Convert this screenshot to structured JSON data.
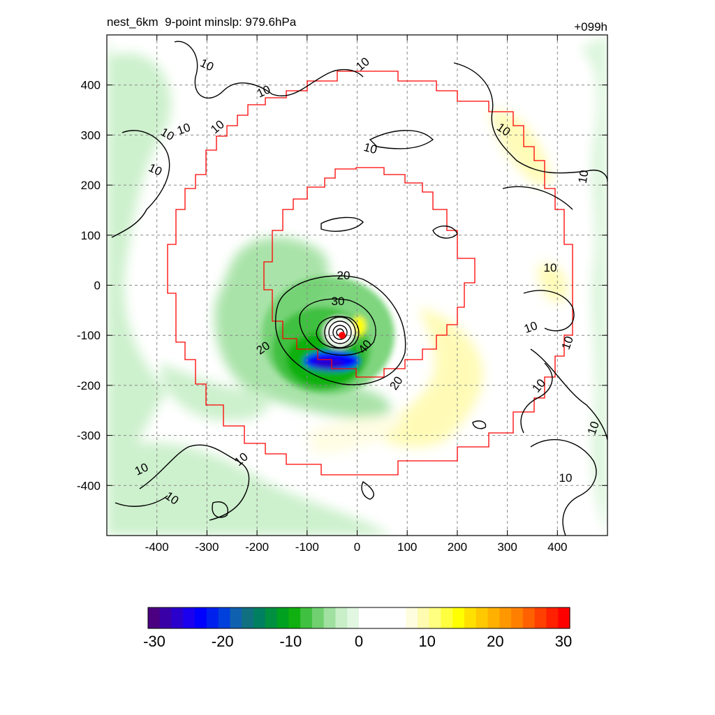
{
  "header": {
    "left_title": "nest_6km  9-point minslp: 979.6hPa",
    "right_title": "+099h"
  },
  "chart_data": {
    "type": "heatmap",
    "title": "nest_6km  9-point minslp: 979.6hPa",
    "forecast_hour_label": "+099h",
    "xlabel": "",
    "ylabel": "",
    "xlim": [
      -500,
      500
    ],
    "ylim": [
      -500,
      500
    ],
    "xticks": [
      -400,
      -300,
      -200,
      -100,
      0,
      100,
      200,
      300,
      400
    ],
    "yticks": [
      -400,
      -300,
      -200,
      -100,
      0,
      100,
      200,
      300,
      400
    ],
    "grid": true,
    "grid_style": "dashed",
    "storm_center": [
      -30,
      -100
    ],
    "contour_labels": [
      "10",
      "20",
      "30",
      "40"
    ],
    "filled_field_features": [
      {
        "kind": "negative-band",
        "min_value": -24,
        "center": [
          -50,
          -145
        ]
      },
      {
        "kind": "positive-spot",
        "max_value": 8,
        "center": [
          0,
          -80
        ]
      }
    ],
    "colorbar": {
      "min": -30,
      "max": 30,
      "ticks": [
        "-30",
        "-20",
        "-10",
        "0",
        "10",
        "20",
        "30"
      ],
      "colors": [
        "#4b0082",
        "#3a00a8",
        "#2a00cc",
        "#1a00ee",
        "#0000ff",
        "#0020ee",
        "#0040dd",
        "#1060b0",
        "#107080",
        "#008060",
        "#009040",
        "#00a020",
        "#10b010",
        "#40c040",
        "#70d070",
        "#a0e0a0",
        "#c8efc8",
        "#e2f7e2",
        "#ffffff",
        "#ffffff",
        "#ffffff",
        "#ffffff",
        "#fffde0",
        "#fffbb0",
        "#ffff80",
        "#ffff40",
        "#ffff00",
        "#ffe000",
        "#ffc800",
        "#ffb000",
        "#ff9800",
        "#ff8000",
        "#ff6000",
        "#ff4000",
        "#ff2000",
        "#ff0000"
      ]
    }
  }
}
